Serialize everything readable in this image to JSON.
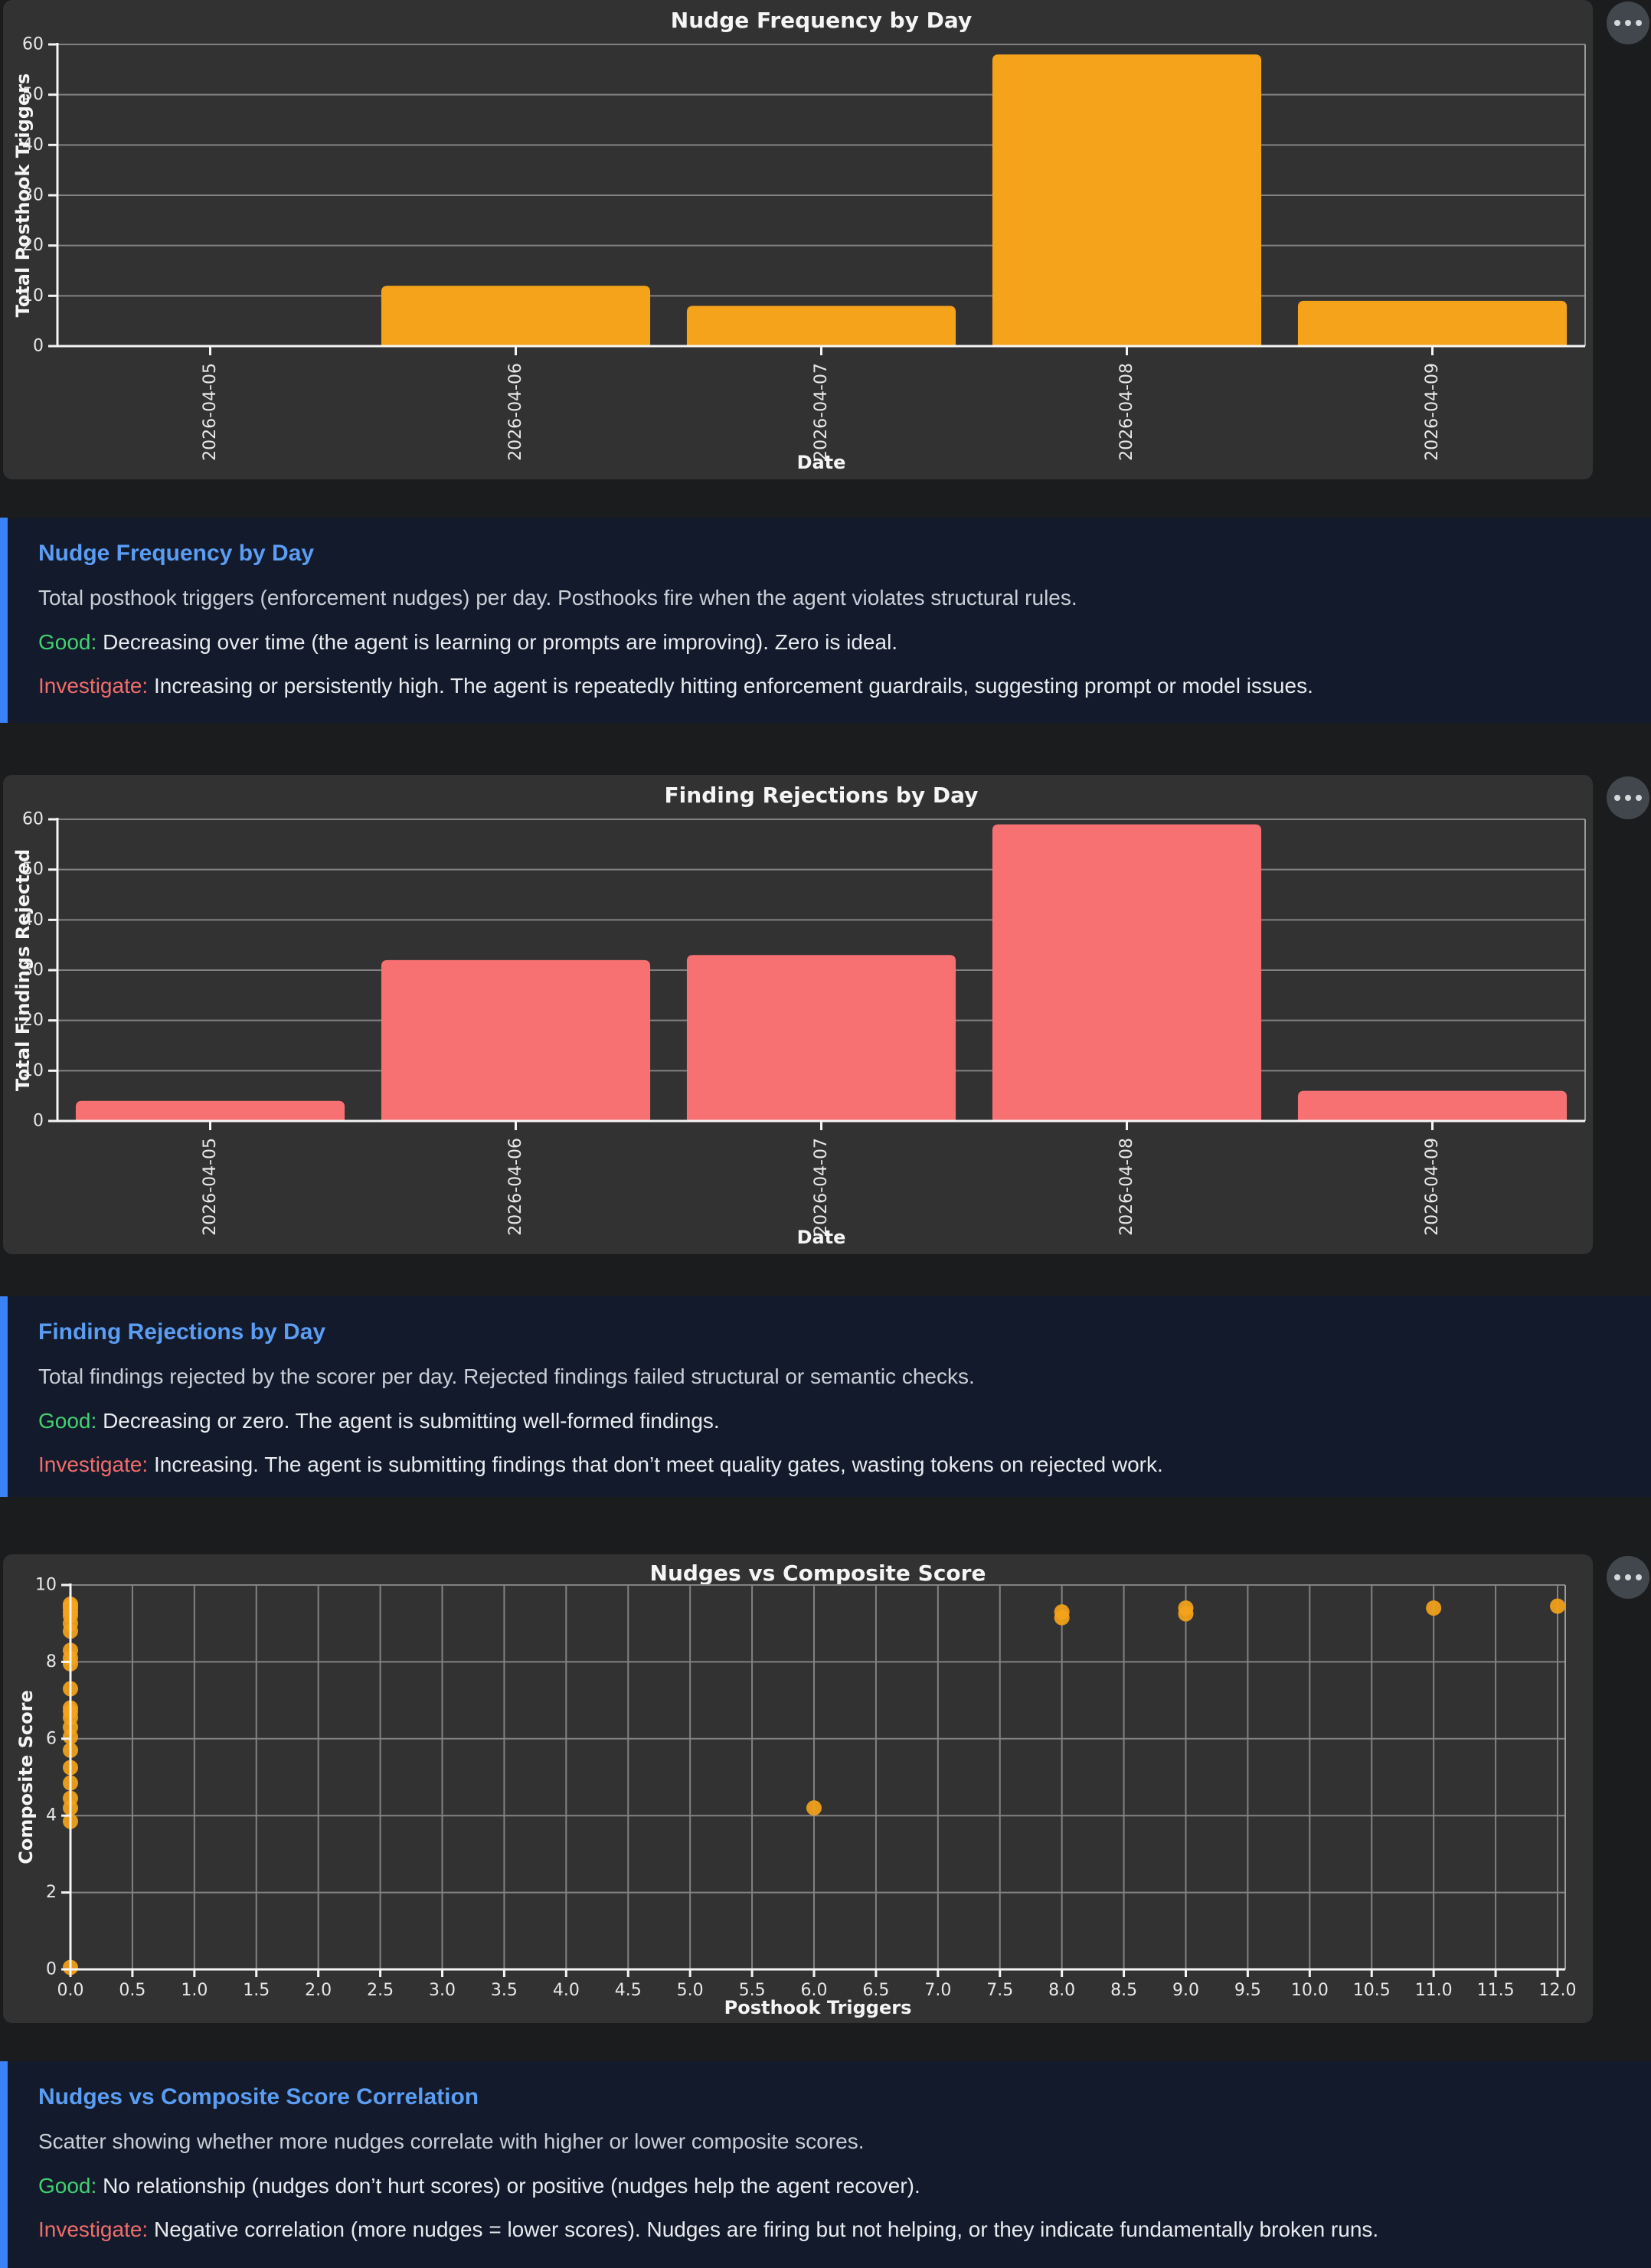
{
  "ui": {
    "panel_menu_icon": "ellipsis",
    "background_color": "#1a1c1e",
    "chart_panel_color": "#323232",
    "note_panel_color": "#121a2c",
    "note_accent_color": "#3b82f6",
    "note_title_color": "#5b9df2",
    "good_color": "#42d26f",
    "investigate_color": "#f26d6a"
  },
  "labels": {
    "good": "Good:",
    "investigate": "Investigate:"
  },
  "chart_data": [
    {
      "type": "bar",
      "title": "Nudge Frequency by Day",
      "xlabel": "Date",
      "ylabel": "Total Posthook Triggers",
      "categories": [
        "2026-04-05",
        "2026-04-06",
        "2026-04-07",
        "2026-04-08",
        "2026-04-09"
      ],
      "values": [
        0,
        12,
        8,
        58,
        9
      ],
      "bar_color": "#f4a31a",
      "ylim": [
        0,
        60
      ],
      "yticks": [
        0,
        10,
        20,
        30,
        40,
        50,
        60
      ],
      "grid": true,
      "legend": false
    },
    {
      "type": "bar",
      "title": "Finding Rejections by Day",
      "xlabel": "Date",
      "ylabel": "Total Findings Rejected",
      "categories": [
        "2026-04-05",
        "2026-04-06",
        "2026-04-07",
        "2026-04-08",
        "2026-04-09"
      ],
      "values": [
        4,
        32,
        33,
        59,
        6
      ],
      "bar_color": "#f77173",
      "ylim": [
        0,
        60
      ],
      "yticks": [
        0,
        10,
        20,
        30,
        40,
        50,
        60
      ],
      "grid": true,
      "legend": false
    },
    {
      "type": "scatter",
      "title": "Nudges vs Composite Score",
      "xlabel": "Posthook Triggers",
      "ylabel": "Composite Score",
      "point_color": "#f4a31a",
      "xlim": [
        0,
        12
      ],
      "ylim": [
        0,
        10
      ],
      "xticks": [
        0.0,
        0.5,
        1.0,
        1.5,
        2.0,
        2.5,
        3.0,
        3.5,
        4.0,
        4.5,
        5.0,
        5.5,
        6.0,
        6.5,
        7.0,
        7.5,
        8.0,
        8.5,
        9.0,
        9.5,
        10.0,
        10.5,
        11.0,
        11.5,
        12.0
      ],
      "yticks": [
        0,
        2,
        4,
        6,
        8,
        10
      ],
      "grid": true,
      "legend": false,
      "points": [
        [
          0,
          9.5
        ],
        [
          0,
          9.45
        ],
        [
          0,
          9.4
        ],
        [
          0,
          9.3
        ],
        [
          0,
          9.2
        ],
        [
          0,
          9.0
        ],
        [
          0,
          8.8
        ],
        [
          0,
          8.3
        ],
        [
          0,
          8.1
        ],
        [
          0,
          7.95
        ],
        [
          0,
          7.3
        ],
        [
          0,
          6.8
        ],
        [
          0,
          6.7
        ],
        [
          0,
          6.55
        ],
        [
          0,
          6.3
        ],
        [
          0,
          6.05
        ],
        [
          0,
          5.7
        ],
        [
          0,
          5.25
        ],
        [
          0,
          4.85
        ],
        [
          0,
          4.45
        ],
        [
          0,
          4.2
        ],
        [
          0,
          3.85
        ],
        [
          0,
          0.05
        ],
        [
          6,
          4.2
        ],
        [
          8,
          9.3
        ],
        [
          8,
          9.15
        ],
        [
          9,
          9.4
        ],
        [
          9,
          9.25
        ],
        [
          11,
          9.4
        ],
        [
          12,
          9.45
        ]
      ]
    }
  ],
  "notes": [
    {
      "title": "Nudge Frequency by Day",
      "body": "Total posthook triggers (enforcement nudges) per day. Posthooks fire when the agent violates structural rules.",
      "good": "Decreasing over time (the agent is learning or prompts are improving). Zero is ideal.",
      "investigate": "Increasing or persistently high. The agent is repeatedly hitting enforcement guardrails, suggesting prompt or model issues."
    },
    {
      "title": "Finding Rejections by Day",
      "body": "Total findings rejected by the scorer per day. Rejected findings failed structural or semantic checks.",
      "good": "Decreasing or zero. The agent is submitting well-formed findings.",
      "investigate": "Increasing. The agent is submitting findings that don’t meet quality gates, wasting tokens on rejected work."
    },
    {
      "title": "Nudges vs Composite Score Correlation",
      "body": "Scatter showing whether more nudges correlate with higher or lower composite scores.",
      "good": "No relationship (nudges don’t hurt scores) or positive (nudges help the agent recover).",
      "investigate": "Negative correlation (more nudges = lower scores). Nudges are firing but not helping, or they indicate fundamentally broken runs."
    }
  ]
}
